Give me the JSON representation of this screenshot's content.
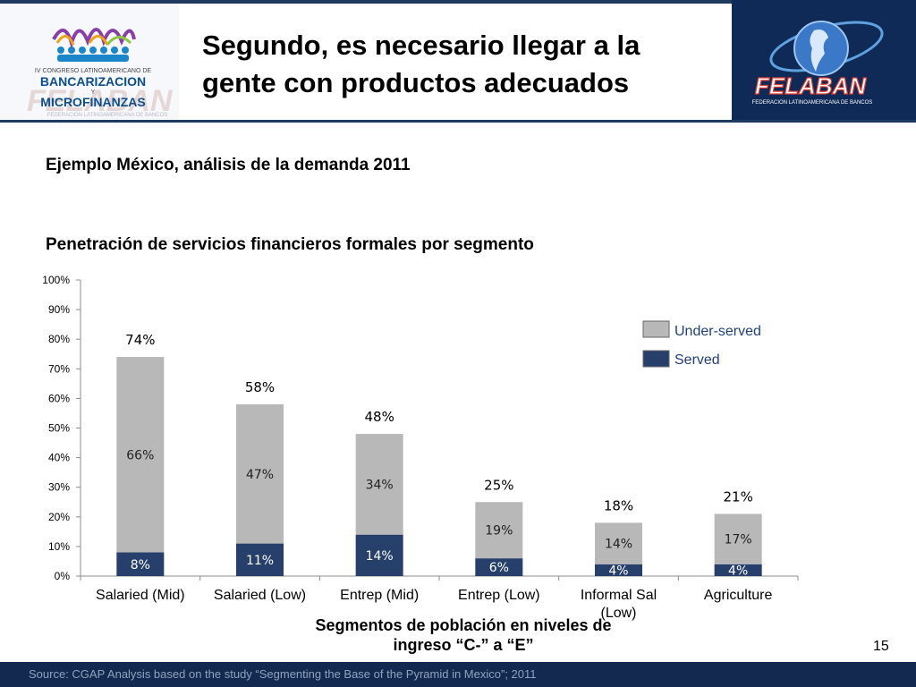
{
  "header": {
    "title": "Segundo, es necesario llegar a la gente con productos adecuados",
    "left_logo": {
      "line1": "IV CONGRESO LATINOAMERICANO DE",
      "line2": "BANCARIZACION",
      "line3": "Y",
      "line4": "MICROFINANZAS",
      "line5": "FELABAN",
      "line6": "FEDERACIÓN LATINOAMERICANA DE BANCOS"
    },
    "right_logo": {
      "name": "FELABAN",
      "tagline": "FEDERACION LATINOAMERICANA DE BANCOS"
    }
  },
  "subtitle1": "Ejemplo México, análisis de la demanda 2011",
  "subtitle2": "Penetración de servicios financieros formales por segmento",
  "chart_data": {
    "type": "bar",
    "stacked": true,
    "categories": [
      "Salaried (Mid)",
      "Salaried (Low)",
      "Entrep (Mid)",
      "Entrep (Low)",
      "Informal Sal (Low)",
      "Agriculture"
    ],
    "series": [
      {
        "name": "Served",
        "values": [
          8,
          11,
          14,
          6,
          4,
          4
        ],
        "labels": [
          "8%",
          "11%",
          "14%",
          "6%",
          "4%",
          "4%"
        ],
        "color": "#263f6b"
      },
      {
        "name": "Under-served",
        "values": [
          66,
          47,
          34,
          19,
          14,
          17
        ],
        "labels": [
          "66%",
          "47%",
          "34%",
          "19%",
          "14%",
          "17%"
        ],
        "color": "#b8b8b8"
      }
    ],
    "totals": [
      74,
      58,
      48,
      25,
      18,
      21
    ],
    "total_labels": [
      "74%",
      "58%",
      "48%",
      "25%",
      "18%",
      "21%"
    ],
    "ylim": [
      0,
      100
    ],
    "yticks": [
      "0%",
      "10%",
      "20%",
      "30%",
      "40%",
      "50%",
      "60%",
      "70%",
      "80%",
      "90%",
      "100%"
    ],
    "xlabel": "Segmentos de población en niveles de ingreso “C-” a “E”",
    "legend": [
      "Under-served",
      "Served"
    ],
    "legend_position": "top-right"
  },
  "page_number": "15",
  "footer": "Source: CGAP Analysis based on the study “Segmenting the Base of the Pyramid in Mexico”; 2011"
}
